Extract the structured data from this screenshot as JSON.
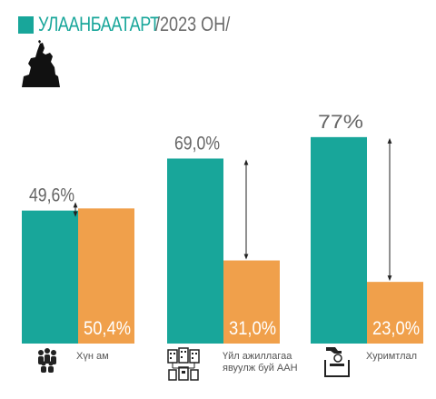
{
  "header": {
    "title": "УЛААНБААТАРТ",
    "subtitle": "/2023 ОН/"
  },
  "colors": {
    "teal": "#18a69a",
    "orange": "#f0a04b",
    "text": "#555555"
  },
  "icons": {
    "logo": "horseman-statue-icon",
    "group1": "people-group-icon",
    "group2": "office-buildings-icon",
    "group3": "savings-deposit-icon"
  },
  "chart_data": {
    "type": "bar",
    "categories": [
      "Хүн ам",
      "Үйл ажиллагаа явуулж буй ААН",
      "Хуримтлал"
    ],
    "category_lines": [
      [
        "Хүн ам"
      ],
      [
        "Үйл ажиллагаа",
        "явуулж буй ААН"
      ],
      [
        "Хуримтлал"
      ]
    ],
    "series": [
      {
        "values": [
          49.6,
          69.0,
          77.0
        ],
        "labels": [
          "49,6%",
          "69,0%",
          "77%"
        ],
        "color": "#18a69a"
      },
      {
        "values": [
          50.4,
          31.0,
          23.0
        ],
        "labels": [
          "50,4%",
          "31,0%",
          "23,0%"
        ],
        "color": "#f0a04b"
      }
    ],
    "ylim": [
      0,
      100
    ],
    "grid": false,
    "legend": "none"
  }
}
